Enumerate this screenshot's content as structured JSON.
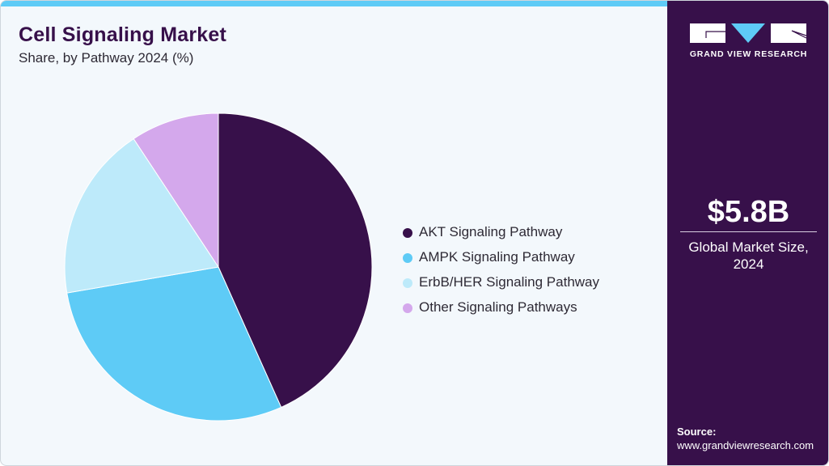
{
  "header": {
    "title": "Cell Signaling Market",
    "subtitle": "Share, by Pathway 2024 (%)"
  },
  "colors": {
    "accent_bar": "#5ecbf6",
    "sidebar_bg": "#37104a",
    "page_bg": "#f3f8fc"
  },
  "legend": {
    "items": [
      {
        "label": "AKT Signaling Pathway",
        "color": "#37104a"
      },
      {
        "label": "AMPK Signaling Pathway",
        "color": "#5ecbf6"
      },
      {
        "label": "ErbB/HER Signaling Pathway",
        "color": "#bdeafa"
      },
      {
        "label": "Other Signaling Pathways",
        "color": "#d4a8ec"
      }
    ]
  },
  "sidebar": {
    "logo_text": "GRAND VIEW RESEARCH",
    "market_value": "$5.8B",
    "market_label_line1": "Global Market Size,",
    "market_label_line2": "2024",
    "source_label": "Source:",
    "source_url": "www.grandviewresearch.com"
  },
  "chart_data": {
    "type": "pie",
    "title": "Cell Signaling Market",
    "subtitle": "Share, by Pathway 2024 (%)",
    "categories": [
      "AKT Signaling Pathway",
      "AMPK Signaling Pathway",
      "ErbB/HER Signaling Pathway",
      "Other Signaling Pathways"
    ],
    "values": [
      43.3,
      29.0,
      18.4,
      9.3
    ],
    "colors": [
      "#37104a",
      "#5ecbf6",
      "#bdeafa",
      "#d4a8ec"
    ],
    "start_angle": "12 o'clock, clockwise",
    "legend_position": "right",
    "data_labels": false
  }
}
